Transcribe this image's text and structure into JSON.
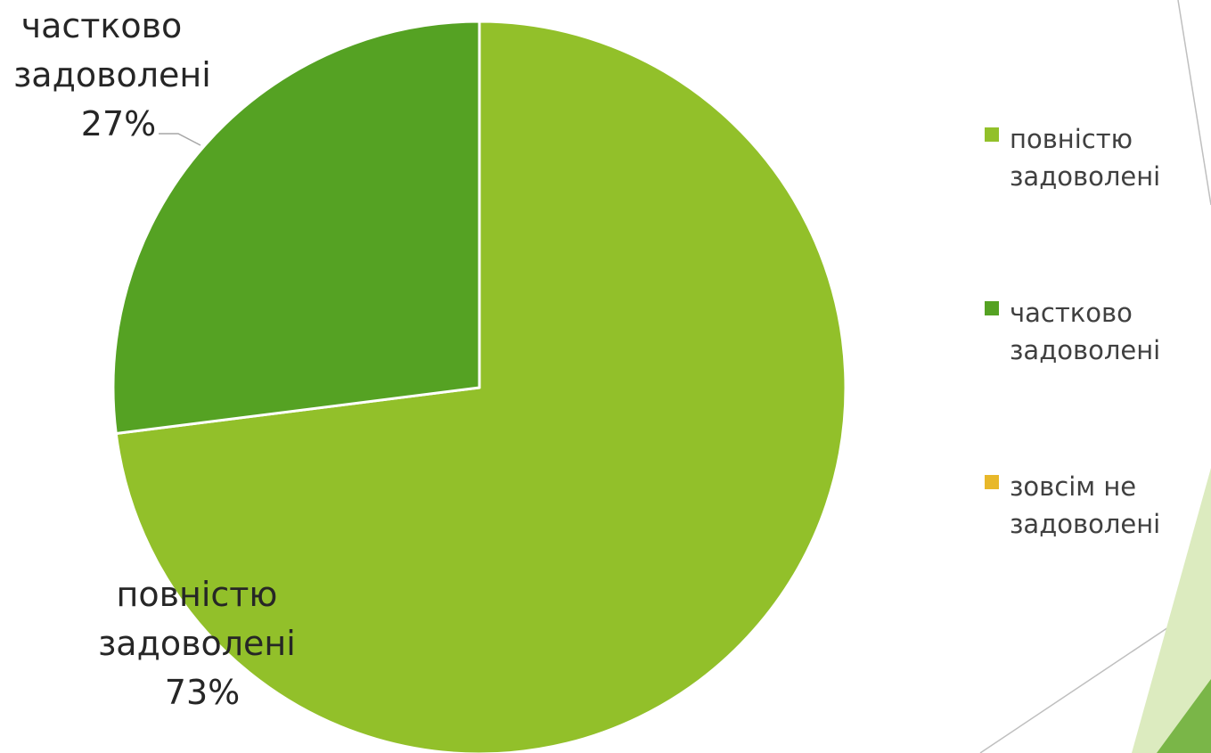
{
  "chart_data": {
    "type": "pie",
    "title": "",
    "slices": [
      {
        "label": "повністю задоволені",
        "value": 73,
        "display": "73%",
        "color": "#92c02a"
      },
      {
        "label": "частково задоволені",
        "value": 27,
        "display": "27%",
        "color": "#55a223"
      },
      {
        "label": "зовсім не задоволені",
        "value": 0,
        "display": "0%",
        "color": "#e8b82a"
      }
    ],
    "legend_position": "right"
  },
  "slice_labels": [
    {
      "lines": [
        "повністю",
        "задоволені"
      ],
      "percent": "73%"
    },
    {
      "lines": [
        "частково",
        "задоволені"
      ],
      "percent": "27%"
    }
  ],
  "legend": [
    {
      "lines": [
        "повністю",
        "задоволені"
      ]
    },
    {
      "lines": [
        "частково",
        "задоволені"
      ]
    },
    {
      "lines": [
        "зовсім не",
        "задоволені"
      ]
    }
  ],
  "colors": {
    "decor_light": "#dcebbf",
    "decor_dark": "#7ab648",
    "decor_line": "#bfbfbf"
  }
}
